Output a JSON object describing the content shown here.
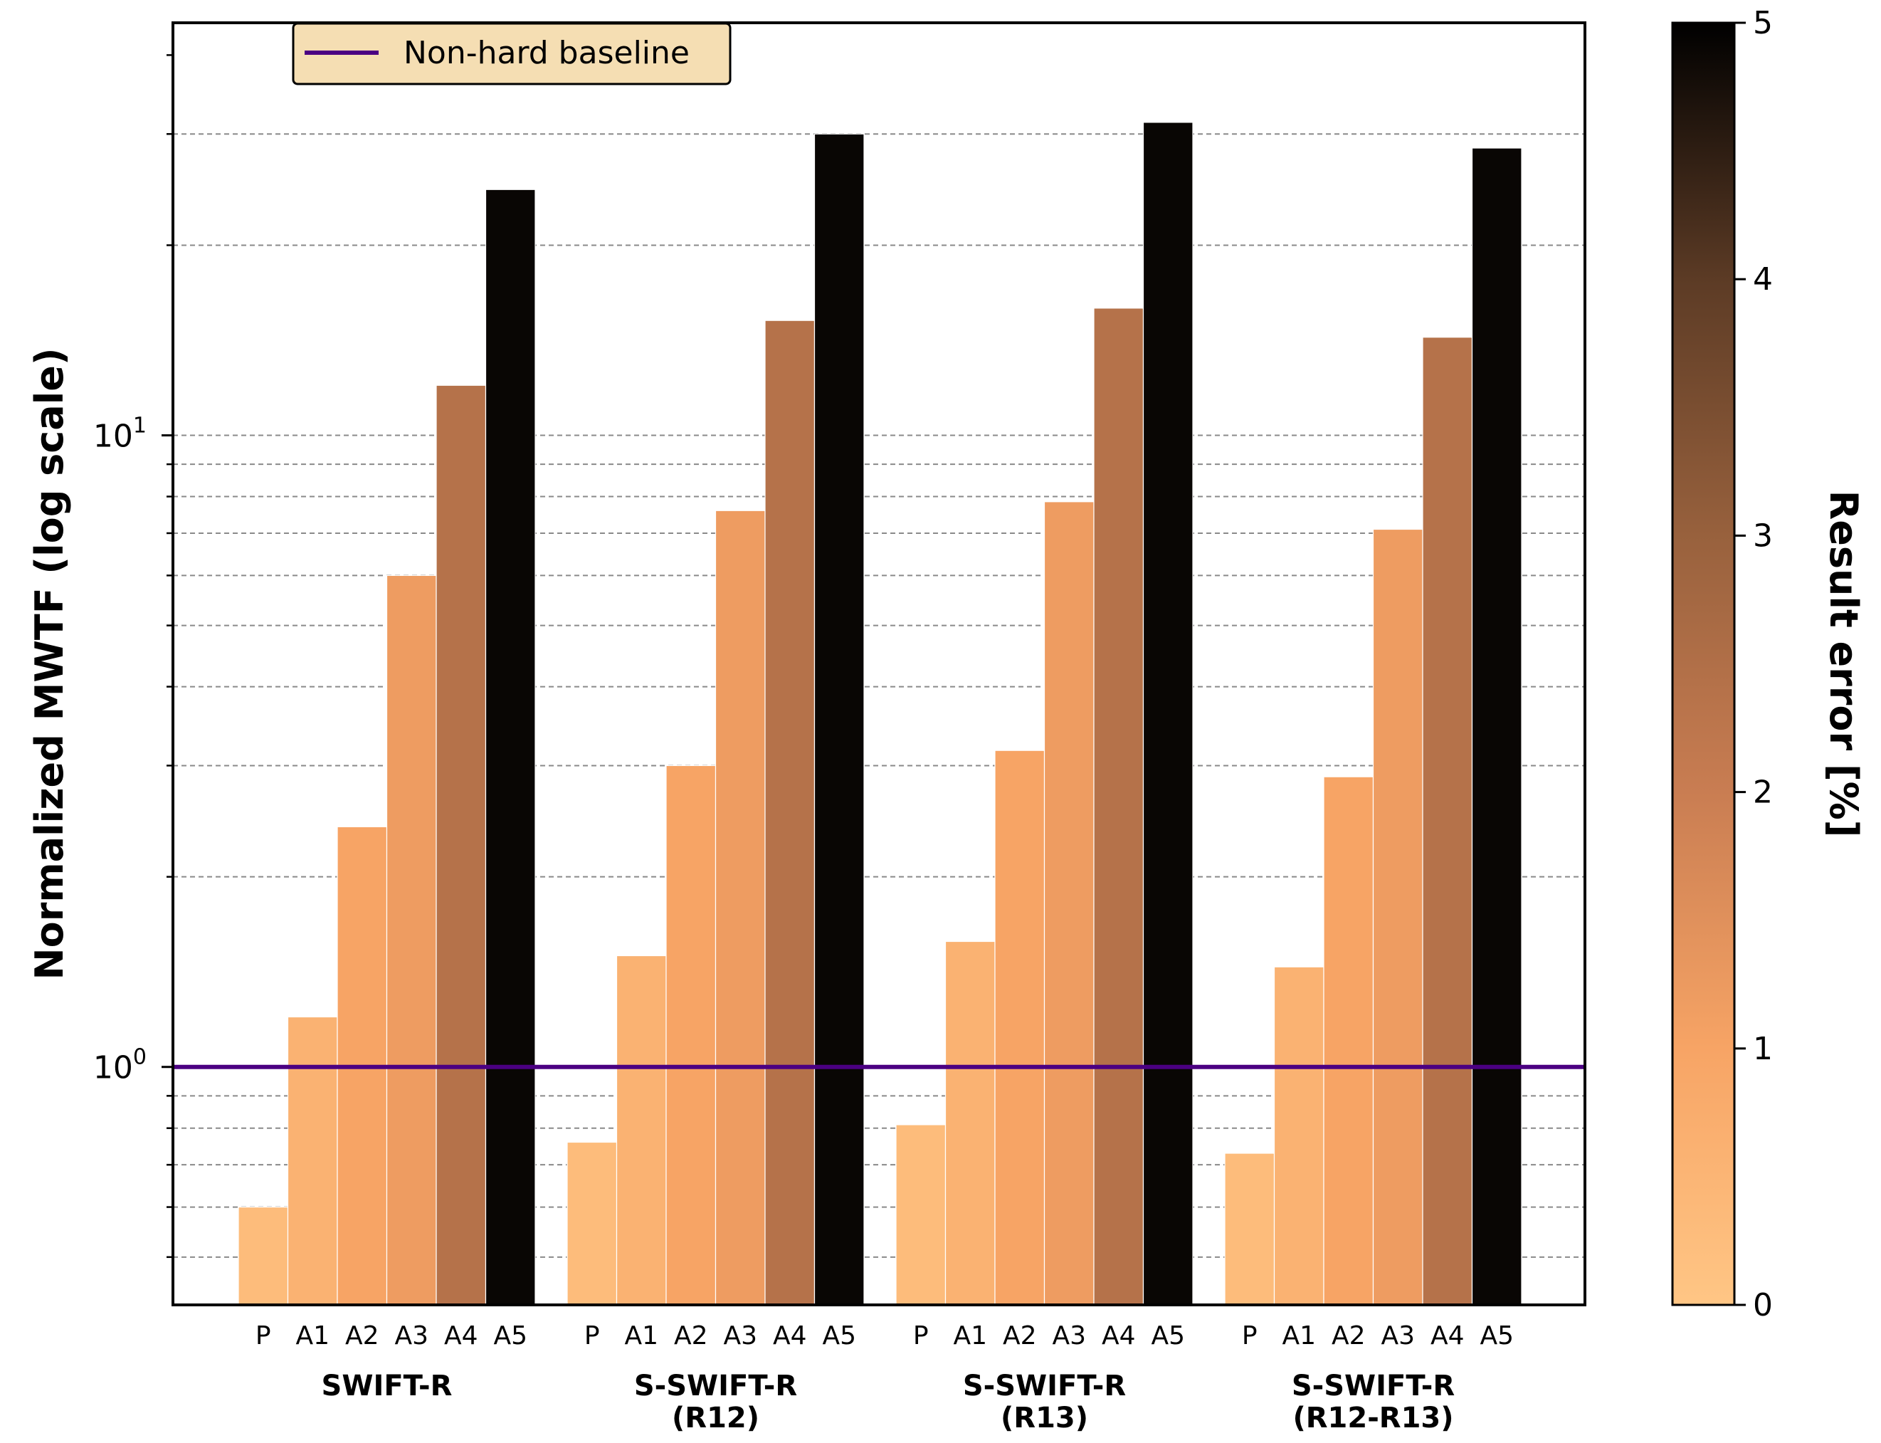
{
  "chart_data": {
    "type": "bar",
    "scale": "log",
    "ylabel": "Normalized MWTF (log scale)",
    "ylim": [
      0.42,
      45
    ],
    "y_ticks": [
      {
        "value": 1,
        "base": "10",
        "exp": "0"
      },
      {
        "value": 10,
        "base": "10",
        "exp": "1"
      }
    ],
    "minor_gridlines": [
      0.5,
      0.6,
      0.7,
      0.8,
      0.9,
      2,
      3,
      4,
      5,
      6,
      7,
      8,
      9,
      20,
      30
    ],
    "bar_labels": [
      "P",
      "A1",
      "A2",
      "A3",
      "A4",
      "A5"
    ],
    "groups": [
      {
        "label_lines": [
          "SWIFT-R"
        ],
        "values": [
          0.6,
          1.2,
          2.4,
          6.0,
          12.0,
          24.5
        ],
        "errors": [
          0.3,
          0.6,
          1.0,
          1.2,
          2.4,
          4.9
        ]
      },
      {
        "label_lines": [
          "S-SWIFT-R",
          "(R12)"
        ],
        "values": [
          0.76,
          1.5,
          3.0,
          7.6,
          15.2,
          30.0
        ],
        "errors": [
          0.3,
          0.6,
          1.0,
          1.2,
          2.4,
          4.9
        ]
      },
      {
        "label_lines": [
          "S-SWIFT-R",
          "(R13)"
        ],
        "values": [
          0.81,
          1.58,
          3.17,
          7.85,
          15.9,
          31.3
        ],
        "errors": [
          0.3,
          0.6,
          1.0,
          1.2,
          2.4,
          4.9
        ]
      },
      {
        "label_lines": [
          "S-SWIFT-R",
          "(R12-R13)"
        ],
        "values": [
          0.73,
          1.44,
          2.88,
          7.1,
          14.3,
          28.5
        ],
        "errors": [
          0.3,
          0.6,
          1.0,
          1.2,
          2.4,
          4.9
        ]
      }
    ],
    "baseline": {
      "value": 1.0,
      "label": "Non-hard baseline",
      "color": "#4b0082"
    },
    "legend_position": "top-left",
    "colorbar": {
      "label": "Result error [%]",
      "min": 0,
      "max": 5,
      "ticks": [
        "0",
        "1",
        "2",
        "3",
        "4",
        "5"
      ],
      "colormap": "copper-reversed",
      "color_stops": [
        "#ffc685",
        "#f7a465",
        "#c97d52",
        "#98613d",
        "#5c3b25",
        "#000000"
      ]
    }
  }
}
